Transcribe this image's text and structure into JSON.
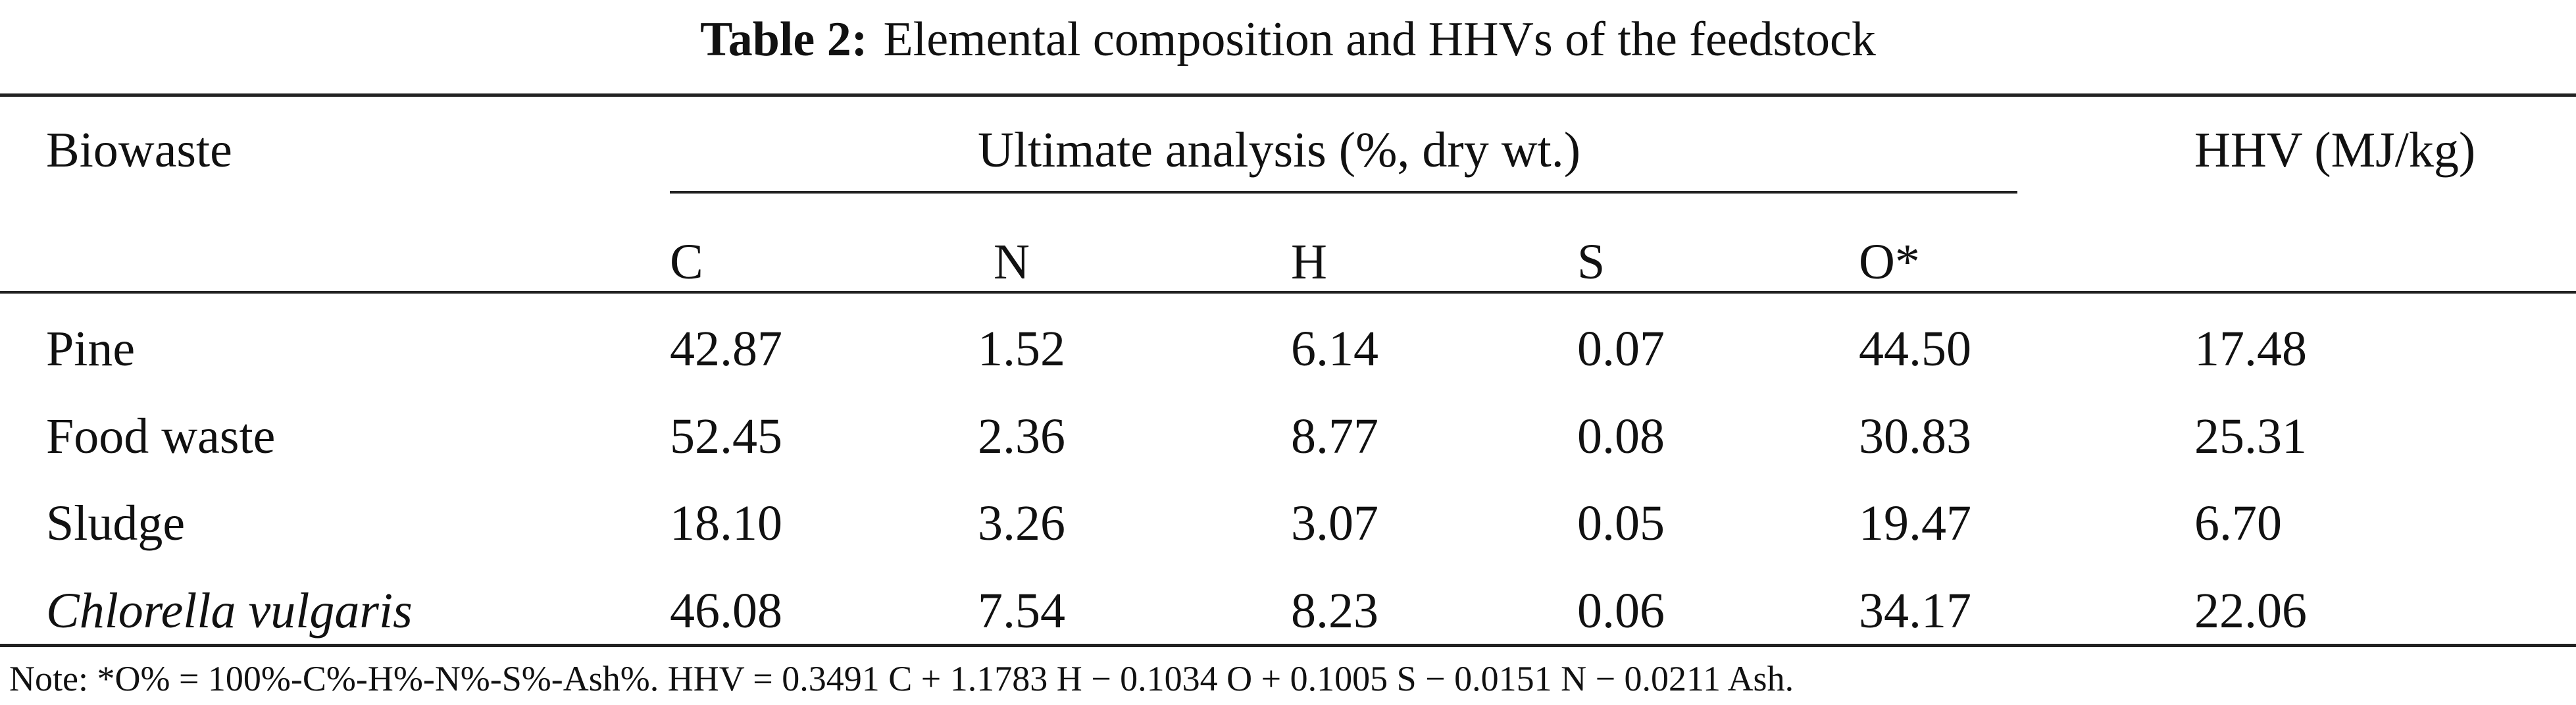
{
  "caption": {
    "label": "Table 2:",
    "text": "Elemental composition and HHVs of the feedstock"
  },
  "header": {
    "biowaste": "Biowaste",
    "group": "Ultimate analysis (%, dry wt.)",
    "hhv": "HHV (MJ/kg)",
    "sub": [
      "C",
      "N",
      "H",
      "S",
      "O*"
    ]
  },
  "rows": [
    {
      "name": "Pine",
      "italic": false,
      "values": [
        "42.87",
        "1.52",
        "6.14",
        "0.07",
        "44.50",
        "17.48"
      ]
    },
    {
      "name": "Food waste",
      "italic": false,
      "values": [
        "52.45",
        "2.36",
        "8.77",
        "0.08",
        "30.83",
        "25.31"
      ]
    },
    {
      "name": "Sludge",
      "italic": false,
      "values": [
        "18.10",
        "3.26",
        "3.07",
        "0.05",
        "19.47",
        "6.70"
      ]
    },
    {
      "name": "Chlorella vulgaris",
      "italic": true,
      "values": [
        "46.08",
        "7.54",
        "8.23",
        "0.06",
        "34.17",
        "22.06"
      ]
    }
  ],
  "note": "Note: *O% = 100%-C%-H%-N%-S%-Ash%. HHV = 0.3491 C + 1.1783 H − 0.1034 O + 0.1005 S − 0.0151 N − 0.0211 Ash."
}
